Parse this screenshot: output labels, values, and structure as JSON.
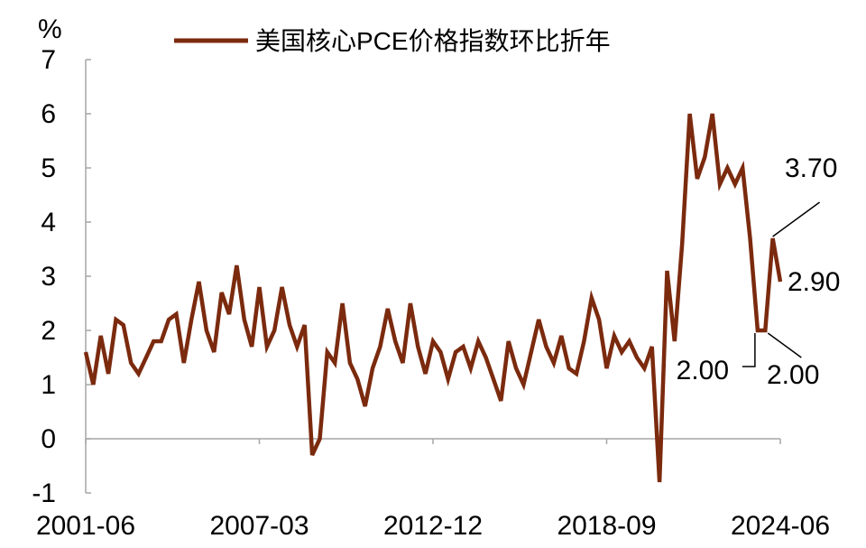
{
  "chart_data": {
    "type": "line",
    "ylabel": "%",
    "ylim": [
      -1,
      7
    ],
    "yticks": [
      -1,
      0,
      1,
      2,
      3,
      4,
      5,
      6,
      7
    ],
    "xlabels": [
      "2001-06",
      "2007-03",
      "2012-12",
      "2018-09",
      "2024-06"
    ],
    "legend": "top-center",
    "grid": false,
    "series": [
      {
        "name": "美国核心PCE价格指数环比折年",
        "color": "#7B2A0E",
        "x": [
          "2001-06",
          "2001-09",
          "2001-12",
          "2002-03",
          "2002-06",
          "2002-09",
          "2002-12",
          "2003-03",
          "2003-06",
          "2003-09",
          "2003-12",
          "2004-03",
          "2004-06",
          "2004-09",
          "2004-12",
          "2005-03",
          "2005-06",
          "2005-09",
          "2005-12",
          "2006-03",
          "2006-06",
          "2006-09",
          "2006-12",
          "2007-03",
          "2007-06",
          "2007-09",
          "2007-12",
          "2008-03",
          "2008-06",
          "2008-09",
          "2008-12",
          "2009-03",
          "2009-06",
          "2009-09",
          "2009-12",
          "2010-03",
          "2010-06",
          "2010-09",
          "2010-12",
          "2011-03",
          "2011-06",
          "2011-09",
          "2011-12",
          "2012-03",
          "2012-06",
          "2012-09",
          "2012-12",
          "2013-03",
          "2013-06",
          "2013-09",
          "2013-12",
          "2014-03",
          "2014-06",
          "2014-09",
          "2014-12",
          "2015-03",
          "2015-06",
          "2015-09",
          "2015-12",
          "2016-03",
          "2016-06",
          "2016-09",
          "2016-12",
          "2017-03",
          "2017-06",
          "2017-09",
          "2017-12",
          "2018-03",
          "2018-06",
          "2018-09",
          "2018-12",
          "2019-03",
          "2019-06",
          "2019-09",
          "2019-12",
          "2020-03",
          "2020-06",
          "2020-09",
          "2020-12",
          "2021-03",
          "2021-06",
          "2021-09",
          "2021-12",
          "2022-03",
          "2022-06",
          "2022-09",
          "2022-12",
          "2023-03",
          "2023-06",
          "2023-09",
          "2023-12",
          "2024-03",
          "2024-06"
        ],
        "values": [
          1.6,
          1.0,
          1.9,
          1.2,
          2.2,
          2.1,
          1.4,
          1.2,
          1.5,
          1.8,
          1.8,
          2.2,
          2.3,
          1.4,
          2.2,
          2.9,
          2.0,
          1.6,
          2.7,
          2.3,
          3.2,
          2.2,
          1.7,
          2.8,
          1.7,
          2.0,
          2.8,
          2.1,
          1.7,
          2.1,
          -0.3,
          0.0,
          1.6,
          1.4,
          2.5,
          1.4,
          1.1,
          0.6,
          1.3,
          1.7,
          2.4,
          1.8,
          1.4,
          2.5,
          1.7,
          1.2,
          1.8,
          1.6,
          1.1,
          1.6,
          1.7,
          1.3,
          1.8,
          1.5,
          1.1,
          0.7,
          1.8,
          1.3,
          1.0,
          1.6,
          2.2,
          1.7,
          1.4,
          1.9,
          1.3,
          1.2,
          1.8,
          2.6,
          2.2,
          1.3,
          1.9,
          1.6,
          1.8,
          1.5,
          1.3,
          1.7,
          -0.8,
          3.1,
          1.8,
          3.6,
          6.0,
          4.8,
          5.2,
          6.0,
          4.7,
          5.0,
          4.7,
          5.0,
          3.7,
          2.0,
          2.0,
          3.7,
          2.9
        ]
      }
    ],
    "annotations": [
      {
        "text": "3.70",
        "x": "2024-03",
        "y": 3.7
      },
      {
        "text": "2.90",
        "x": "2024-06",
        "y": 2.9
      },
      {
        "text": "2.00",
        "x": "2023-09",
        "y": 2.0
      },
      {
        "text": "2.00",
        "x": "2023-12",
        "y": 2.0
      }
    ]
  }
}
